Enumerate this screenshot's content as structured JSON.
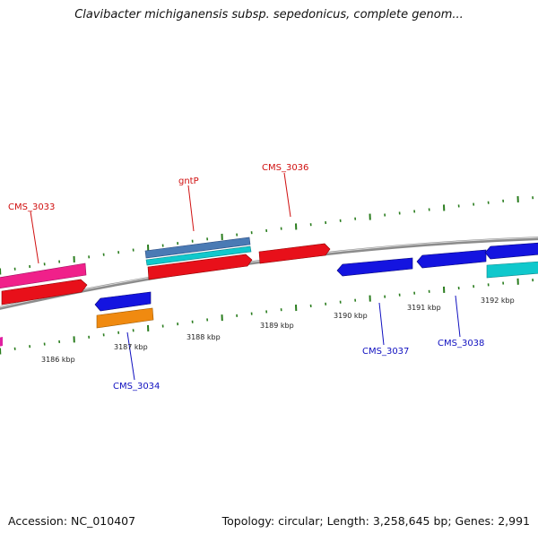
{
  "header": {
    "title": "Clavibacter michiganensis subsp. sepedonicus, complete genom..."
  },
  "footer": {
    "accession": "Accession: NC_010407",
    "summary": "Topology: circular; Length: 3,258,645 bp; Genes: 2,991"
  },
  "colors": {
    "backbone": "#8c8c8c",
    "tick": "#2a7d1e",
    "forward_label": "#d01010",
    "reverse_label": "#1010c0",
    "red_gene": "#e8101a",
    "pink_gene": "#f0208a",
    "blue_gene": "#1414e0",
    "cyan_gene": "#10c8cc",
    "steel_gene": "#4a7ab4",
    "orange_gene": "#f08a10"
  },
  "scale": {
    "unit": "kbp",
    "labels": [
      "3186 kbp",
      "3187 kbp",
      "3188 kbp",
      "3189 kbp",
      "3190 kbp",
      "3191 kbp",
      "3192 kbp"
    ]
  },
  "gene_labels": {
    "forward": [
      "CMS_3033",
      "gntP",
      "CMS_3036"
    ],
    "reverse": [
      "CMS_3034",
      "CMS_3037",
      "CMS_3038"
    ]
  }
}
